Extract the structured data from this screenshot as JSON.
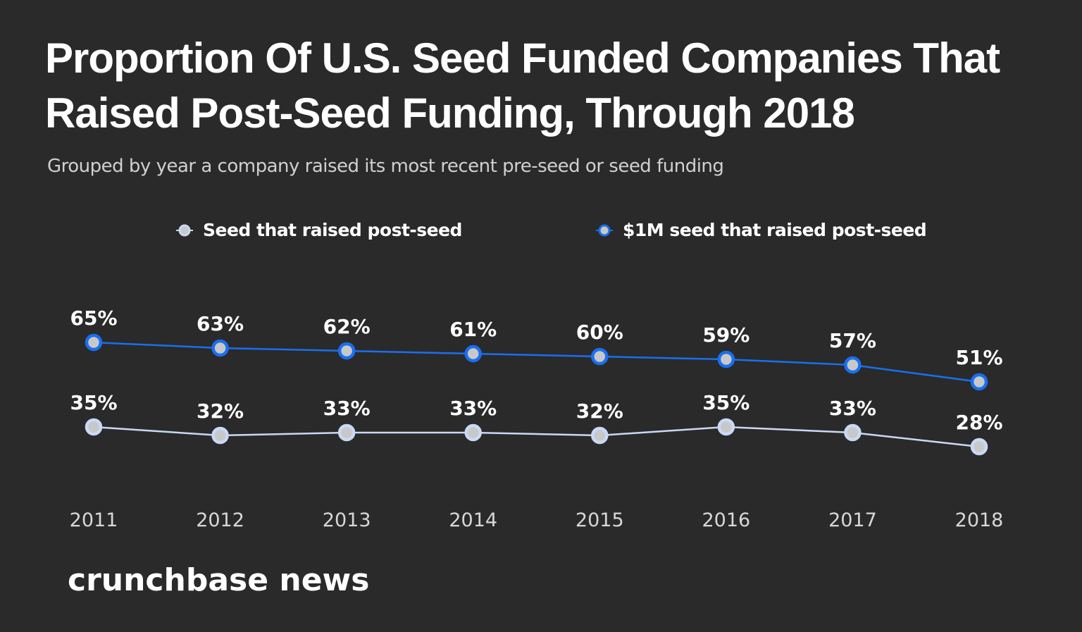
{
  "title": "Proportion Of U.S. Seed Funded Companies That Raised Post-Seed Funding, Through 2018",
  "subtitle": "Grouped by year a company raised its most recent pre-seed or seed funding",
  "brand": "crunchbase news",
  "colors": {
    "background": "#2a2a2a",
    "seed": "#c9d9f5",
    "million_seed": "#1a6ff0",
    "marker_fill": "#c8c8c8"
  },
  "chart_data": {
    "type": "line",
    "title": "Proportion Of U.S. Seed Funded Companies That Raised Post-Seed Funding, Through 2018",
    "subtitle": "Grouped by year a company raised its most recent pre-seed or seed funding",
    "categories": [
      "2011",
      "2012",
      "2013",
      "2014",
      "2015",
      "2016",
      "2017",
      "2018"
    ],
    "legend_position": "top",
    "grid": false,
    "series": [
      {
        "name": "Seed that raised post-seed",
        "color": "#c9d9f5",
        "values": [
          35,
          32,
          33,
          33,
          32,
          35,
          33,
          28
        ],
        "labels": [
          "35%",
          "32%",
          "33%",
          "33%",
          "32%",
          "35%",
          "33%",
          "28%"
        ]
      },
      {
        "name": "$1M seed that raised post-seed",
        "color": "#1a6ff0",
        "values": [
          65,
          63,
          62,
          61,
          60,
          59,
          57,
          51
        ],
        "labels": [
          "65%",
          "63%",
          "62%",
          "61%",
          "60%",
          "59%",
          "57%",
          "51%"
        ]
      }
    ]
  }
}
